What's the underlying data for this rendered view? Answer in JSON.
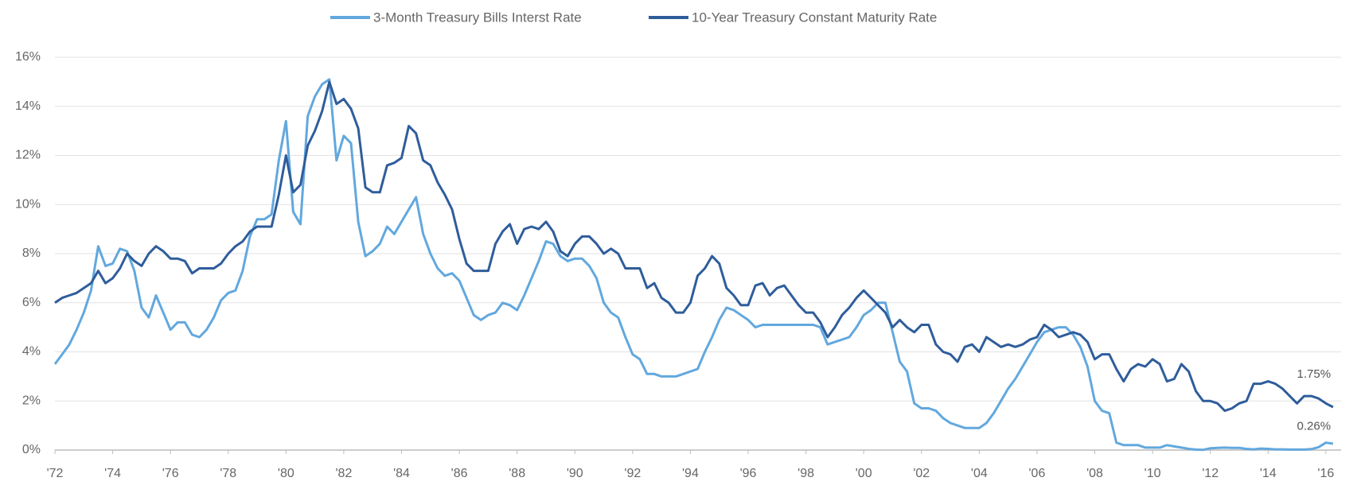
{
  "chart_data": {
    "type": "line",
    "x": [
      1972,
      1972.25,
      1972.5,
      1972.75,
      1973,
      1973.25,
      1973.5,
      1973.75,
      1974,
      1974.25,
      1974.5,
      1974.75,
      1975,
      1975.25,
      1975.5,
      1975.75,
      1976,
      1976.25,
      1976.5,
      1976.75,
      1977,
      1977.25,
      1977.5,
      1977.75,
      1978,
      1978.25,
      1978.5,
      1978.75,
      1979,
      1979.25,
      1979.5,
      1979.75,
      1980,
      1980.25,
      1980.5,
      1980.75,
      1981,
      1981.25,
      1981.5,
      1981.75,
      1982,
      1982.25,
      1982.5,
      1982.75,
      1983,
      1983.25,
      1983.5,
      1983.75,
      1984,
      1984.25,
      1984.5,
      1984.75,
      1985,
      1985.25,
      1985.5,
      1985.75,
      1986,
      1986.25,
      1986.5,
      1986.75,
      1987,
      1987.25,
      1987.5,
      1987.75,
      1988,
      1988.25,
      1988.5,
      1988.75,
      1989,
      1989.25,
      1989.5,
      1989.75,
      1990,
      1990.25,
      1990.5,
      1990.75,
      1991,
      1991.25,
      1991.5,
      1991.75,
      1992,
      1992.25,
      1992.5,
      1992.75,
      1993,
      1993.25,
      1993.5,
      1993.75,
      1994,
      1994.25,
      1994.5,
      1994.75,
      1995,
      1995.25,
      1995.5,
      1995.75,
      1996,
      1996.25,
      1996.5,
      1996.75,
      1997,
      1997.25,
      1997.5,
      1997.75,
      1998,
      1998.25,
      1998.5,
      1998.75,
      1999,
      1999.25,
      1999.5,
      1999.75,
      2000,
      2000.25,
      2000.5,
      2000.75,
      2001,
      2001.25,
      2001.5,
      2001.75,
      2002,
      2002.25,
      2002.5,
      2002.75,
      2003,
      2003.25,
      2003.5,
      2003.75,
      2004,
      2004.25,
      2004.5,
      2004.75,
      2005,
      2005.25,
      2005.5,
      2005.75,
      2006,
      2006.25,
      2006.5,
      2006.75,
      2007,
      2007.25,
      2007.5,
      2007.75,
      2008,
      2008.25,
      2008.5,
      2008.75,
      2009,
      2009.25,
      2009.5,
      2009.75,
      2010,
      2010.25,
      2010.5,
      2010.75,
      2011,
      2011.25,
      2011.5,
      2011.75,
      2012,
      2012.25,
      2012.5,
      2012.75,
      2013,
      2013.25,
      2013.5,
      2013.75,
      2014,
      2014.25,
      2014.5,
      2014.75,
      2015,
      2015.25,
      2015.5,
      2015.75,
      2016,
      2016.25
    ],
    "series": [
      {
        "name": "3-Month Treasury Bills Interst Rate",
        "color": "#62a8de",
        "values": [
          3.5,
          3.9,
          4.3,
          4.9,
          5.6,
          6.5,
          8.3,
          7.5,
          7.6,
          8.2,
          8.1,
          7.3,
          5.8,
          5.4,
          6.3,
          5.6,
          4.9,
          5.2,
          5.2,
          4.7,
          4.6,
          4.9,
          5.4,
          6.1,
          6.4,
          6.5,
          7.3,
          8.7,
          9.4,
          9.4,
          9.6,
          11.8,
          13.4,
          9.7,
          9.2,
          13.6,
          14.4,
          14.9,
          15.1,
          11.8,
          12.8,
          12.5,
          9.3,
          7.9,
          8.1,
          8.4,
          9.1,
          8.8,
          9.3,
          9.8,
          10.3,
          8.8,
          8.0,
          7.4,
          7.1,
          7.2,
          6.9,
          6.2,
          5.5,
          5.3,
          5.5,
          5.6,
          6.0,
          5.9,
          5.7,
          6.3,
          7.0,
          7.7,
          8.5,
          8.4,
          7.9,
          7.7,
          7.8,
          7.8,
          7.5,
          7.0,
          6.0,
          5.6,
          5.4,
          4.6,
          3.9,
          3.7,
          3.1,
          3.1,
          3.0,
          3.0,
          3.0,
          3.1,
          3.2,
          3.3,
          4.0,
          4.6,
          5.3,
          5.8,
          5.7,
          5.5,
          5.3,
          5.0,
          5.1,
          5.1,
          5.1,
          5.1,
          5.1,
          5.1,
          5.1,
          5.1,
          5.0,
          4.3,
          4.4,
          4.5,
          4.6,
          5.0,
          5.5,
          5.7,
          6.0,
          6.0,
          4.8,
          3.6,
          3.2,
          1.9,
          1.7,
          1.7,
          1.6,
          1.3,
          1.1,
          1.0,
          0.9,
          0.9,
          0.9,
          1.1,
          1.5,
          2.0,
          2.5,
          2.9,
          3.4,
          3.9,
          4.4,
          4.8,
          4.9,
          5.0,
          5.0,
          4.7,
          4.2,
          3.4,
          2.0,
          1.6,
          1.5,
          0.3,
          0.2,
          0.2,
          0.2,
          0.1,
          0.1,
          0.1,
          0.2,
          0.15,
          0.1,
          0.05,
          0.02,
          0.01,
          0.07,
          0.09,
          0.1,
          0.09,
          0.09,
          0.05,
          0.03,
          0.06,
          0.05,
          0.03,
          0.03,
          0.02,
          0.02,
          0.02,
          0.04,
          0.12,
          0.3,
          0.26
        ],
        "value_labels": [
          null,
          null,
          null,
          null,
          null,
          null,
          null,
          null,
          null,
          null,
          null,
          null,
          null,
          null,
          null,
          null,
          null,
          null,
          null,
          null,
          null,
          null,
          null,
          null,
          null,
          null,
          null,
          null,
          null,
          null,
          null,
          null,
          null,
          null,
          null,
          null,
          null,
          null,
          null,
          null,
          null,
          null,
          null,
          null,
          null,
          null,
          null,
          null,
          null,
          null,
          null,
          null,
          null,
          null,
          null,
          null,
          null,
          null,
          null,
          null,
          null,
          null,
          null,
          null,
          null,
          null,
          null,
          null,
          null,
          null,
          null,
          null,
          null,
          null,
          null,
          null,
          null,
          null,
          null,
          null,
          null,
          null,
          null,
          null,
          null,
          null,
          null,
          null,
          null,
          null,
          null,
          null,
          null,
          null,
          null,
          null,
          null,
          null,
          null,
          null,
          null,
          null,
          null,
          null,
          null,
          null,
          null,
          null,
          null,
          null,
          null,
          null,
          null,
          null,
          null,
          null,
          null,
          null,
          null,
          null,
          null,
          null,
          null,
          null,
          null,
          null,
          null,
          null,
          null,
          null,
          null,
          null,
          null,
          null,
          null,
          null,
          null,
          null,
          null,
          null,
          null,
          null,
          null,
          null,
          null,
          null,
          null,
          null,
          null,
          null,
          null,
          null,
          null,
          null,
          null,
          null,
          null,
          null,
          null,
          null,
          null,
          null,
          null,
          null,
          null,
          null,
          null,
          null,
          null,
          null,
          null,
          null,
          null,
          null,
          null,
          "0.26%"
        ]
      },
      {
        "name": "10-Year Treasury Constant Maturity Rate",
        "color": "#2f5d9b",
        "values": [
          6.0,
          6.2,
          6.3,
          6.4,
          6.6,
          6.8,
          7.3,
          6.8,
          7.0,
          7.4,
          8.0,
          7.7,
          7.5,
          8.0,
          8.3,
          8.1,
          7.8,
          7.8,
          7.7,
          7.2,
          7.4,
          7.4,
          7.4,
          7.6,
          8.0,
          8.3,
          8.5,
          8.9,
          9.1,
          9.1,
          9.1,
          10.4,
          12.0,
          10.5,
          10.8,
          12.4,
          13.0,
          13.8,
          15.0,
          14.1,
          14.3,
          13.9,
          13.1,
          10.7,
          10.5,
          10.5,
          11.6,
          11.7,
          11.9,
          13.2,
          12.9,
          11.8,
          11.6,
          10.9,
          10.4,
          9.8,
          8.6,
          7.6,
          7.3,
          7.3,
          7.3,
          8.4,
          8.9,
          9.2,
          8.4,
          9.0,
          9.1,
          9.0,
          9.3,
          8.9,
          8.1,
          7.9,
          8.4,
          8.7,
          8.7,
          8.4,
          8.0,
          8.2,
          8.0,
          7.4,
          7.4,
          7.4,
          6.6,
          6.8,
          6.2,
          6.0,
          5.6,
          5.6,
          6.0,
          7.1,
          7.4,
          7.9,
          7.6,
          6.6,
          6.3,
          5.9,
          5.9,
          6.7,
          6.8,
          6.3,
          6.6,
          6.7,
          6.3,
          5.9,
          5.6,
          5.6,
          5.2,
          4.6,
          5.0,
          5.5,
          5.8,
          6.2,
          6.5,
          6.2,
          5.9,
          5.6,
          5.0,
          5.3,
          5.0,
          4.8,
          5.1,
          5.1,
          4.3,
          4.0,
          3.9,
          3.6,
          4.2,
          4.3,
          4.0,
          4.6,
          4.4,
          4.2,
          4.3,
          4.2,
          4.3,
          4.5,
          4.6,
          5.1,
          4.9,
          4.6,
          4.7,
          4.8,
          4.7,
          4.4,
          3.7,
          3.9,
          3.9,
          3.3,
          2.8,
          3.3,
          3.5,
          3.4,
          3.7,
          3.5,
          2.8,
          2.9,
          3.5,
          3.2,
          2.4,
          2.0,
          2.0,
          1.9,
          1.6,
          1.7,
          1.9,
          2.0,
          2.7,
          2.7,
          2.8,
          2.7,
          2.5,
          2.2,
          1.9,
          2.2,
          2.2,
          2.1,
          1.9,
          1.75
        ],
        "value_labels": [
          null,
          null,
          null,
          null,
          null,
          null,
          null,
          null,
          null,
          null,
          null,
          null,
          null,
          null,
          null,
          null,
          null,
          null,
          null,
          null,
          null,
          null,
          null,
          null,
          null,
          null,
          null,
          null,
          null,
          null,
          null,
          null,
          null,
          null,
          null,
          null,
          null,
          null,
          null,
          null,
          null,
          null,
          null,
          null,
          null,
          null,
          null,
          null,
          null,
          null,
          null,
          null,
          null,
          null,
          null,
          null,
          null,
          null,
          null,
          null,
          null,
          null,
          null,
          null,
          null,
          null,
          null,
          null,
          null,
          null,
          null,
          null,
          null,
          null,
          null,
          null,
          null,
          null,
          null,
          null,
          null,
          null,
          null,
          null,
          null,
          null,
          null,
          null,
          null,
          null,
          null,
          null,
          null,
          null,
          null,
          null,
          null,
          null,
          null,
          null,
          null,
          null,
          null,
          null,
          null,
          null,
          null,
          null,
          null,
          null,
          null,
          null,
          null,
          null,
          null,
          null,
          null,
          null,
          null,
          null,
          null,
          null,
          null,
          null,
          null,
          null,
          null,
          null,
          null,
          null,
          null,
          null,
          null,
          null,
          null,
          null,
          null,
          null,
          null,
          null,
          null,
          null,
          null,
          null,
          null,
          null,
          null,
          null,
          null,
          null,
          null,
          null,
          null,
          null,
          null,
          null,
          null,
          null,
          null,
          null,
          null,
          null,
          null,
          null,
          null,
          null,
          null,
          null,
          null,
          null,
          null,
          null,
          null,
          null,
          null,
          "1.75%"
        ]
      }
    ],
    "xlim": [
      1972,
      2016.5
    ],
    "xticks": [
      {
        "value": 1972,
        "label": "'72"
      },
      {
        "value": 1974,
        "label": "'74"
      },
      {
        "value": 1976,
        "label": "'76"
      },
      {
        "value": 1978,
        "label": "'78"
      },
      {
        "value": 1980,
        "label": "'80"
      },
      {
        "value": 1982,
        "label": "'82"
      },
      {
        "value": 1984,
        "label": "'84"
      },
      {
        "value": 1986,
        "label": "'86"
      },
      {
        "value": 1988,
        "label": "'88"
      },
      {
        "value": 1990,
        "label": "'90"
      },
      {
        "value": 1992,
        "label": "'92"
      },
      {
        "value": 1994,
        "label": "'94"
      },
      {
        "value": 1996,
        "label": "'96"
      },
      {
        "value": 1998,
        "label": "'98"
      },
      {
        "value": 2000,
        "label": "'00"
      },
      {
        "value": 2002,
        "label": "'02"
      },
      {
        "value": 2004,
        "label": "'04"
      },
      {
        "value": 2006,
        "label": "'06"
      },
      {
        "value": 2008,
        "label": "'08"
      },
      {
        "value": 2010,
        "label": "'10"
      },
      {
        "value": 2012,
        "label": "'12"
      },
      {
        "value": 2014,
        "label": "'14"
      },
      {
        "value": 2016,
        "label": "'16"
      }
    ],
    "ylim": [
      0,
      16
    ],
    "yticks": [
      {
        "value": 0,
        "label": "0%"
      },
      {
        "value": 2,
        "label": "2%"
      },
      {
        "value": 4,
        "label": "4%"
      },
      {
        "value": 6,
        "label": "6%"
      },
      {
        "value": 8,
        "label": "8%"
      },
      {
        "value": 10,
        "label": "10%"
      },
      {
        "value": 12,
        "label": "12%"
      },
      {
        "value": 14,
        "label": "14%"
      },
      {
        "value": 16,
        "label": "16%"
      }
    ],
    "grid": true,
    "legend": "top"
  }
}
